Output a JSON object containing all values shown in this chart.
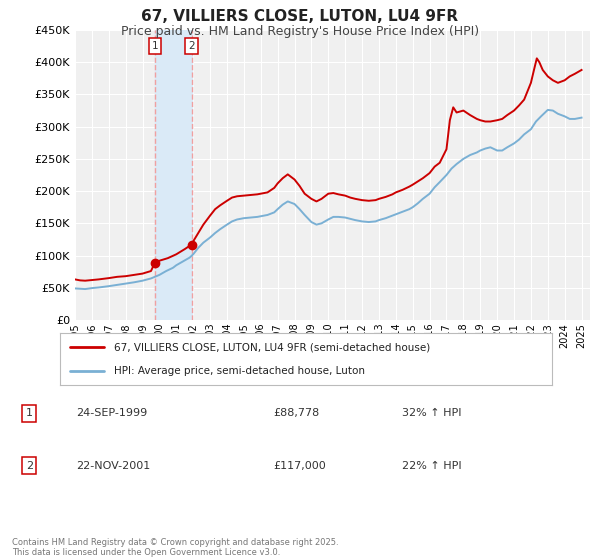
{
  "title": "67, VILLIERS CLOSE, LUTON, LU4 9FR",
  "subtitle": "Price paid vs. HM Land Registry's House Price Index (HPI)",
  "title_fontsize": 11,
  "subtitle_fontsize": 9,
  "ylim": [
    0,
    450000
  ],
  "xlim_start": 1995.0,
  "xlim_end": 2025.5,
  "background_color": "#ffffff",
  "plot_bg_color": "#f0f0f0",
  "grid_color": "#ffffff",
  "red_line_color": "#cc0000",
  "blue_line_color": "#7ab0d4",
  "sale1_date": 1999.73,
  "sale2_date": 2001.9,
  "sale1_price": 88778,
  "sale2_price": 117000,
  "vspan_color": "#daeaf7",
  "vline_color": "#f0a0a0",
  "marker_color": "#cc0000",
  "legend_label_red": "67, VILLIERS CLOSE, LUTON, LU4 9FR (semi-detached house)",
  "legend_label_blue": "HPI: Average price, semi-detached house, Luton",
  "annotation1_num": "1",
  "annotation1_date": "24-SEP-1999",
  "annotation1_price": "£88,778",
  "annotation1_hpi": "32% ↑ HPI",
  "annotation2_num": "2",
  "annotation2_date": "22-NOV-2001",
  "annotation2_price": "£117,000",
  "annotation2_hpi": "22% ↑ HPI",
  "footer": "Contains HM Land Registry data © Crown copyright and database right 2025.\nThis data is licensed under the Open Government Licence v3.0.",
  "red_data": [
    [
      1995.0,
      63000
    ],
    [
      1995.3,
      61500
    ],
    [
      1995.6,
      61000
    ],
    [
      1996.0,
      62000
    ],
    [
      1996.4,
      63000
    ],
    [
      1997.0,
      65000
    ],
    [
      1997.5,
      67000
    ],
    [
      1998.0,
      68000
    ],
    [
      1998.5,
      70000
    ],
    [
      1999.0,
      72000
    ],
    [
      1999.5,
      76000
    ],
    [
      1999.73,
      88778
    ],
    [
      2000.0,
      92000
    ],
    [
      2000.5,
      96000
    ],
    [
      2001.0,
      102000
    ],
    [
      2001.5,
      110000
    ],
    [
      2001.9,
      117000
    ],
    [
      2002.0,
      122000
    ],
    [
      2002.3,
      135000
    ],
    [
      2002.6,
      148000
    ],
    [
      2003.0,
      162000
    ],
    [
      2003.3,
      172000
    ],
    [
      2003.6,
      178000
    ],
    [
      2004.0,
      185000
    ],
    [
      2004.3,
      190000
    ],
    [
      2004.6,
      192000
    ],
    [
      2005.0,
      193000
    ],
    [
      2005.4,
      194000
    ],
    [
      2005.8,
      195000
    ],
    [
      2006.0,
      196000
    ],
    [
      2006.4,
      198000
    ],
    [
      2006.8,
      205000
    ],
    [
      2007.0,
      212000
    ],
    [
      2007.3,
      220000
    ],
    [
      2007.6,
      226000
    ],
    [
      2008.0,
      218000
    ],
    [
      2008.3,
      208000
    ],
    [
      2008.6,
      196000
    ],
    [
      2009.0,
      188000
    ],
    [
      2009.3,
      184000
    ],
    [
      2009.6,
      188000
    ],
    [
      2010.0,
      196000
    ],
    [
      2010.3,
      197000
    ],
    [
      2010.6,
      195000
    ],
    [
      2011.0,
      193000
    ],
    [
      2011.3,
      190000
    ],
    [
      2011.6,
      188000
    ],
    [
      2012.0,
      186000
    ],
    [
      2012.4,
      185000
    ],
    [
      2012.8,
      186000
    ],
    [
      2013.0,
      188000
    ],
    [
      2013.4,
      191000
    ],
    [
      2013.8,
      195000
    ],
    [
      2014.0,
      198000
    ],
    [
      2014.4,
      202000
    ],
    [
      2014.8,
      207000
    ],
    [
      2015.0,
      210000
    ],
    [
      2015.3,
      215000
    ],
    [
      2015.6,
      220000
    ],
    [
      2016.0,
      228000
    ],
    [
      2016.3,
      238000
    ],
    [
      2016.6,
      244000
    ],
    [
      2017.0,
      265000
    ],
    [
      2017.2,
      310000
    ],
    [
      2017.4,
      330000
    ],
    [
      2017.6,
      322000
    ],
    [
      2018.0,
      325000
    ],
    [
      2018.4,
      318000
    ],
    [
      2018.8,
      312000
    ],
    [
      2019.0,
      310000
    ],
    [
      2019.3,
      308000
    ],
    [
      2019.6,
      308000
    ],
    [
      2020.0,
      310000
    ],
    [
      2020.3,
      312000
    ],
    [
      2020.6,
      318000
    ],
    [
      2021.0,
      325000
    ],
    [
      2021.3,
      333000
    ],
    [
      2021.6,
      342000
    ],
    [
      2022.0,
      368000
    ],
    [
      2022.2,
      390000
    ],
    [
      2022.35,
      406000
    ],
    [
      2022.5,
      400000
    ],
    [
      2022.7,
      388000
    ],
    [
      2023.0,
      378000
    ],
    [
      2023.3,
      372000
    ],
    [
      2023.6,
      368000
    ],
    [
      2024.0,
      372000
    ],
    [
      2024.3,
      378000
    ],
    [
      2024.6,
      382000
    ],
    [
      2025.0,
      388000
    ]
  ],
  "blue_data": [
    [
      1995.0,
      49000
    ],
    [
      1995.3,
      48500
    ],
    [
      1995.6,
      48000
    ],
    [
      1996.0,
      49500
    ],
    [
      1996.4,
      50500
    ],
    [
      1997.0,
      52500
    ],
    [
      1997.5,
      54500
    ],
    [
      1998.0,
      56500
    ],
    [
      1998.5,
      58500
    ],
    [
      1999.0,
      61000
    ],
    [
      1999.5,
      64500
    ],
    [
      2000.0,
      70000
    ],
    [
      2000.4,
      76000
    ],
    [
      2000.8,
      81000
    ],
    [
      2001.0,
      85000
    ],
    [
      2001.4,
      91000
    ],
    [
      2001.8,
      97000
    ],
    [
      2002.0,
      102000
    ],
    [
      2002.3,
      112000
    ],
    [
      2002.6,
      120000
    ],
    [
      2003.0,
      128000
    ],
    [
      2003.3,
      135000
    ],
    [
      2003.6,
      141000
    ],
    [
      2004.0,
      148000
    ],
    [
      2004.3,
      153000
    ],
    [
      2004.6,
      156000
    ],
    [
      2005.0,
      158000
    ],
    [
      2005.4,
      159000
    ],
    [
      2005.8,
      160000
    ],
    [
      2006.0,
      161000
    ],
    [
      2006.4,
      163000
    ],
    [
      2006.8,
      167000
    ],
    [
      2007.0,
      172000
    ],
    [
      2007.3,
      179000
    ],
    [
      2007.6,
      184000
    ],
    [
      2008.0,
      180000
    ],
    [
      2008.3,
      172000
    ],
    [
      2008.6,
      163000
    ],
    [
      2009.0,
      152000
    ],
    [
      2009.3,
      148000
    ],
    [
      2009.6,
      150000
    ],
    [
      2010.0,
      156000
    ],
    [
      2010.3,
      160000
    ],
    [
      2010.6,
      160000
    ],
    [
      2011.0,
      159000
    ],
    [
      2011.3,
      157000
    ],
    [
      2011.6,
      155000
    ],
    [
      2012.0,
      153000
    ],
    [
      2012.4,
      152000
    ],
    [
      2012.8,
      153000
    ],
    [
      2013.0,
      155000
    ],
    [
      2013.4,
      158000
    ],
    [
      2013.8,
      162000
    ],
    [
      2014.0,
      164000
    ],
    [
      2014.4,
      168000
    ],
    [
      2014.8,
      172000
    ],
    [
      2015.0,
      175000
    ],
    [
      2015.3,
      181000
    ],
    [
      2015.6,
      188000
    ],
    [
      2016.0,
      196000
    ],
    [
      2016.3,
      206000
    ],
    [
      2016.6,
      214000
    ],
    [
      2017.0,
      225000
    ],
    [
      2017.3,
      235000
    ],
    [
      2017.6,
      242000
    ],
    [
      2018.0,
      250000
    ],
    [
      2018.4,
      256000
    ],
    [
      2018.8,
      260000
    ],
    [
      2019.0,
      263000
    ],
    [
      2019.3,
      266000
    ],
    [
      2019.6,
      268000
    ],
    [
      2020.0,
      263000
    ],
    [
      2020.3,
      263000
    ],
    [
      2020.6,
      268000
    ],
    [
      2021.0,
      274000
    ],
    [
      2021.3,
      280000
    ],
    [
      2021.6,
      288000
    ],
    [
      2022.0,
      296000
    ],
    [
      2022.3,
      308000
    ],
    [
      2022.6,
      316000
    ],
    [
      2023.0,
      326000
    ],
    [
      2023.3,
      325000
    ],
    [
      2023.6,
      320000
    ],
    [
      2024.0,
      316000
    ],
    [
      2024.3,
      312000
    ],
    [
      2024.6,
      312000
    ],
    [
      2025.0,
      314000
    ]
  ]
}
